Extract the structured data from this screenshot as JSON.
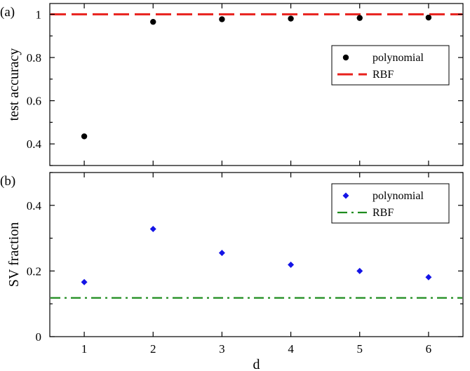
{
  "chart_data": [
    {
      "type": "scatter",
      "panel_label": "(a)",
      "ylabel": "test accuracy",
      "xlabel": "",
      "xlim": [
        0.5,
        6.5
      ],
      "ylim": [
        0.3,
        1.05
      ],
      "xticks": [
        1,
        2,
        3,
        4,
        5,
        6
      ],
      "yticks": [
        0.4,
        0.6,
        0.8,
        1
      ],
      "ytick_labels": [
        "0.4",
        "0.6",
        "0.8",
        "1"
      ],
      "show_x_tick_labels": false,
      "grid": false,
      "legend_position": "right",
      "series": [
        {
          "name": "polynomial",
          "kind": "points",
          "marker": "circle",
          "color": "#000000",
          "x": [
            1,
            2,
            3,
            4,
            5,
            6
          ],
          "values": [
            0.435,
            0.965,
            0.977,
            0.98,
            0.983,
            0.985
          ]
        },
        {
          "name": "RBF",
          "kind": "hline",
          "style": "dashed",
          "color": "#e8201c",
          "value": 1.0
        }
      ]
    },
    {
      "type": "scatter",
      "panel_label": "(b)",
      "ylabel": "SV fraction",
      "xlabel": "d",
      "xlim": [
        0.5,
        6.5
      ],
      "ylim": [
        0,
        0.5
      ],
      "xticks": [
        1,
        2,
        3,
        4,
        5,
        6
      ],
      "xtick_labels": [
        "1",
        "2",
        "3",
        "4",
        "5",
        "6"
      ],
      "yticks": [
        0,
        0.2,
        0.4
      ],
      "ytick_labels": [
        "0",
        "0.2",
        "0.4"
      ],
      "show_x_tick_labels": true,
      "grid": false,
      "legend_position": "top-right",
      "series": [
        {
          "name": "polynomial",
          "kind": "points",
          "marker": "diamond",
          "color": "#1414e6",
          "x": [
            1,
            2,
            3,
            4,
            5,
            6
          ],
          "values": [
            0.166,
            0.328,
            0.255,
            0.219,
            0.2,
            0.181
          ]
        },
        {
          "name": "RBF",
          "kind": "hline",
          "style": "dashdot",
          "color": "#1e8c1e",
          "value": 0.118
        }
      ]
    }
  ]
}
